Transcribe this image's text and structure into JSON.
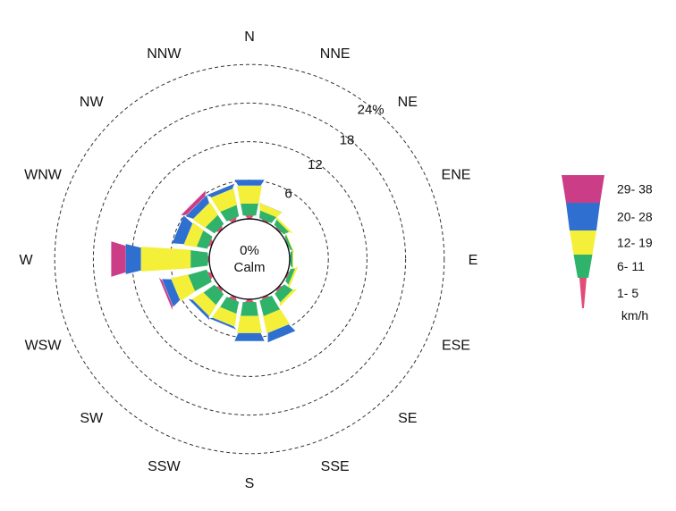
{
  "chart_data": {
    "type": "wind-rose",
    "directions": [
      "N",
      "NNE",
      "NE",
      "ENE",
      "E",
      "ESE",
      "SE",
      "SSE",
      "S",
      "SSW",
      "SW",
      "WSW",
      "W",
      "WNW",
      "NW",
      "NNW"
    ],
    "radial_ticks": [
      "6",
      "12",
      "18",
      "24%"
    ],
    "radial_tick_values": [
      6,
      12,
      18,
      24
    ],
    "calm": {
      "value_label": "0%",
      "label": "Calm"
    },
    "speed_bins": [
      {
        "label": "1-  5",
        "color": "#e34c79"
      },
      {
        "label": "6- 11",
        "color": "#2fb36a"
      },
      {
        "label": "12- 19",
        "color": "#f4f03a"
      },
      {
        "label": "20- 28",
        "color": "#2f6fd0"
      },
      {
        "label": "29- 38",
        "color": "#cc3d87"
      }
    ],
    "legend_units": "km/h",
    "legend_labels_top_down": [
      "29- 38",
      "20- 28",
      "12- 19",
      "6- 11",
      "1-  5"
    ],
    "frequencies_cumulative": {
      "N": [
        0.6,
        2.5,
        5.3,
        6.3,
        6.3
      ],
      "NNE": [
        0.3,
        1.5,
        2.6,
        2.7,
        2.7
      ],
      "NE": [
        0.3,
        1.2,
        1.6,
        1.6,
        1.6
      ],
      "ENE": [
        0.2,
        0.6,
        0.8,
        0.8,
        0.8
      ],
      "E": [
        0.2,
        0.6,
        0.8,
        0.8,
        0.8
      ],
      "ESE": [
        0.3,
        1.0,
        1.4,
        1.4,
        1.4
      ],
      "SE": [
        0.4,
        2.0,
        2.5,
        2.5,
        2.5
      ],
      "SSE": [
        0.4,
        2.9,
        5.6,
        7.0,
        7.0
      ],
      "S": [
        0.5,
        2.7,
        5.4,
        6.7,
        6.7
      ],
      "SSW": [
        0.6,
        2.5,
        4.5,
        4.9,
        4.9
      ],
      "SW": [
        0.5,
        2.6,
        4.6,
        5.1,
        5.1
      ],
      "WSW": [
        0.6,
        3.6,
        6.3,
        7.7,
        8.1
      ],
      "W": [
        0.3,
        3.0,
        10.7,
        13.1,
        15.4
      ],
      "WNW": [
        0.5,
        2.2,
        4.2,
        6.0,
        6.0
      ],
      "NW": [
        0.5,
        2.2,
        4.5,
        5.7,
        6.4
      ],
      "NNW": [
        0.6,
        2.4,
        5.0,
        5.7,
        5.7
      ]
    }
  }
}
